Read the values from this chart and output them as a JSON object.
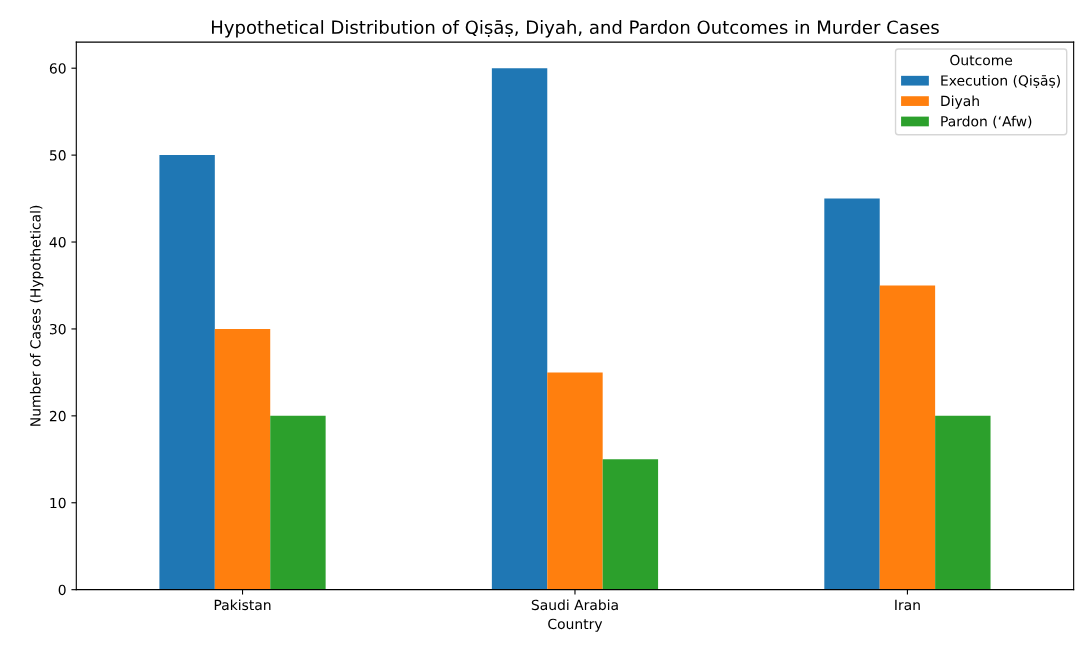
{
  "chart_data": {
    "type": "bar",
    "title": "Hypothetical Distribution of Qiṣāṣ, Diyah, and Pardon Outcomes in Murder Cases",
    "xlabel": "Country",
    "ylabel": "Number of Cases (Hypothetical)",
    "legend_title": "Outcome",
    "categories": [
      "Pakistan",
      "Saudi Arabia",
      "Iran"
    ],
    "series": [
      {
        "name": "Execution (Qiṣāṣ)",
        "color": "#1f77b4",
        "values": [
          50,
          60,
          45
        ]
      },
      {
        "name": "Diyah",
        "color": "#ff7f0e",
        "values": [
          30,
          25,
          35
        ]
      },
      {
        "name": "Pardon (ʻAfw)",
        "color": "#2ca02c",
        "values": [
          20,
          15,
          20
        ]
      }
    ],
    "ylim": [
      0,
      63
    ],
    "yticks": [
      0,
      10,
      20,
      30,
      40,
      50,
      60
    ],
    "legend": "top right"
  }
}
